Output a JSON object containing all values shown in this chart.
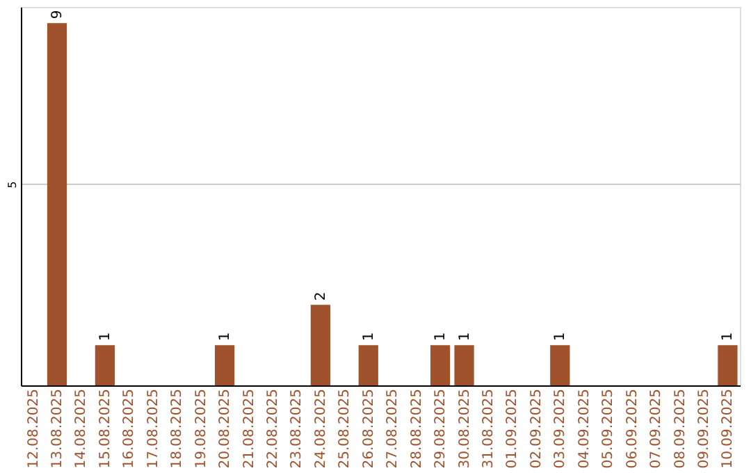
{
  "chart_data": {
    "type": "bar",
    "categories": [
      "12.08.2025",
      "13.08.2025",
      "14.08.2025",
      "15.08.2025",
      "16.08.2025",
      "17.08.2025",
      "18.08.2025",
      "19.08.2025",
      "20.08.2025",
      "21.08.2025",
      "22.08.2025",
      "23.08.2025",
      "24.08.2025",
      "25.08.2025",
      "26.08.2025",
      "27.08.2025",
      "28.08.2025",
      "29.08.2025",
      "30.08.2025",
      "31.08.2025",
      "01.09.2025",
      "02.09.2025",
      "03.09.2025",
      "04.09.2025",
      "05.09.2025",
      "06.09.2025",
      "07.09.2025",
      "08.09.2025",
      "09.09.2025",
      "10.09.2025"
    ],
    "values": [
      0,
      9,
      0,
      1,
      0,
      0,
      0,
      0,
      1,
      0,
      0,
      0,
      2,
      0,
      1,
      0,
      0,
      1,
      1,
      0,
      0,
      0,
      1,
      0,
      0,
      0,
      0,
      0,
      0,
      1
    ],
    "value_labels": [
      null,
      "9",
      null,
      "1",
      null,
      null,
      null,
      null,
      "1",
      null,
      null,
      null,
      "2",
      null,
      "1",
      null,
      null,
      "1",
      "1",
      null,
      null,
      null,
      "1",
      null,
      null,
      null,
      null,
      null,
      null,
      "1"
    ],
    "color": "#a0522d",
    "ylim": [
      0,
      9.4
    ],
    "yticks": [
      5
    ],
    "grid": "y"
  }
}
